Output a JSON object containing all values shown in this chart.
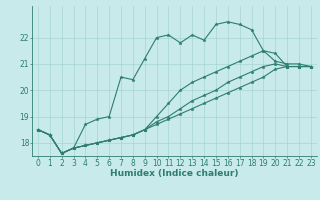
{
  "xlabel": "Humidex (Indice chaleur)",
  "bg_color": "#c8eaea",
  "line_color": "#2e7d70",
  "grid_color": "#a0d0d0",
  "xlim": [
    -0.5,
    23.5
  ],
  "ylim": [
    17.5,
    23.2
  ],
  "yticks": [
    18,
    19,
    20,
    21,
    22
  ],
  "xticks": [
    0,
    1,
    2,
    3,
    4,
    5,
    6,
    7,
    8,
    9,
    10,
    11,
    12,
    13,
    14,
    15,
    16,
    17,
    18,
    19,
    20,
    21,
    22,
    23
  ],
  "series": [
    [
      18.5,
      18.3,
      17.6,
      17.8,
      18.7,
      18.9,
      19.0,
      20.5,
      20.4,
      21.2,
      22.0,
      22.1,
      21.8,
      22.1,
      21.9,
      22.5,
      22.6,
      22.5,
      22.3,
      21.5,
      21.1,
      21.0,
      21.0,
      20.9
    ],
    [
      18.5,
      18.3,
      17.6,
      17.8,
      17.9,
      18.0,
      18.1,
      18.2,
      18.3,
      18.5,
      19.0,
      19.5,
      20.0,
      20.3,
      20.5,
      20.7,
      20.9,
      21.1,
      21.3,
      21.5,
      21.4,
      20.9,
      20.9,
      20.9
    ],
    [
      18.5,
      18.3,
      17.6,
      17.8,
      17.9,
      18.0,
      18.1,
      18.2,
      18.3,
      18.5,
      18.8,
      19.0,
      19.3,
      19.6,
      19.8,
      20.0,
      20.3,
      20.5,
      20.7,
      20.9,
      21.0,
      20.9,
      20.9,
      20.9
    ],
    [
      18.5,
      18.3,
      17.6,
      17.8,
      17.9,
      18.0,
      18.1,
      18.2,
      18.3,
      18.5,
      18.7,
      18.9,
      19.1,
      19.3,
      19.5,
      19.7,
      19.9,
      20.1,
      20.3,
      20.5,
      20.8,
      20.9,
      20.9,
      20.9
    ]
  ],
  "tick_fontsize": 5.5,
  "xlabel_fontsize": 6.5
}
